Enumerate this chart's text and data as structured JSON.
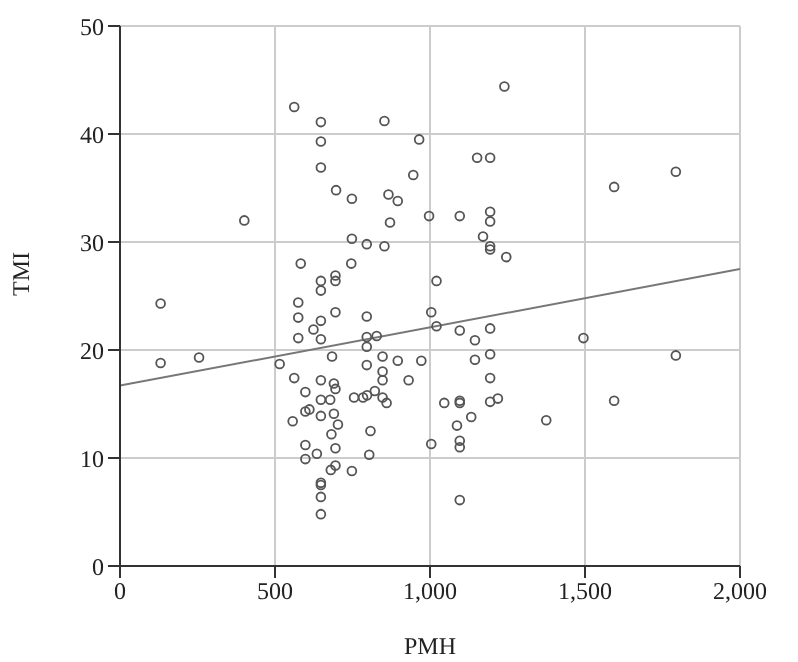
{
  "chart_data": {
    "type": "scatter",
    "xlabel": "PMH",
    "ylabel": "TMI",
    "xlim": [
      0,
      2000
    ],
    "ylim": [
      0,
      50
    ],
    "xticks": [
      0,
      500,
      {
        "value": 1000,
        "label": "1,000"
      },
      {
        "value": 1500,
        "label": "1,500"
      },
      {
        "value": 2000,
        "label": "2,000"
      }
    ],
    "yticks": [
      0,
      10,
      20,
      30,
      40,
      50
    ],
    "grid": true,
    "marker": "circle",
    "series": [
      {
        "color": "#555555",
        "x": [
          562,
          648,
          853,
          965,
          648,
          648,
          946,
          697,
          748,
          866,
          896,
          401,
          871,
          997,
          748,
          796,
          853,
          583,
          746,
          648,
          695,
          695,
          1021,
          648,
          131,
          575,
          575,
          648,
          695,
          624,
          575,
          648,
          796,
          796,
          828,
          796,
          1004,
          1021,
          131,
          255,
          515,
          684,
          796,
          847,
          896,
          972,
          847,
          847,
          931,
          562,
          648,
          690,
          695,
          598,
          648,
          678,
          755,
          784,
          797,
          822,
          847,
          860,
          611,
          598,
          648,
          690,
          557,
          703,
          682,
          808,
          598,
          695,
          635,
          598,
          804,
          695,
          680,
          748,
          648,
          648,
          648,
          648,
          1004,
          1046,
          1096,
          1194,
          1145,
          1194,
          1145,
          1495,
          1793,
          1194,
          1096,
          1096,
          1194,
          1219,
          1133,
          1087,
          1375,
          1594,
          1096,
          1096,
          1096,
          1240,
          1152,
          1194,
          1594,
          1793,
          1096,
          1194,
          1194,
          1171,
          1194,
          1194,
          1246
        ],
        "values": [
          42.5,
          41.1,
          41.2,
          39.5,
          39.3,
          36.9,
          36.2,
          34.8,
          34.0,
          34.4,
          33.8,
          32.0,
          31.8,
          32.4,
          30.3,
          29.8,
          29.6,
          28.0,
          28.0,
          26.4,
          26.9,
          26.4,
          26.4,
          25.5,
          24.3,
          24.4,
          23.0,
          22.7,
          23.5,
          21.9,
          21.1,
          21.0,
          23.1,
          21.2,
          21.3,
          20.3,
          23.5,
          22.2,
          18.8,
          19.3,
          18.7,
          19.4,
          18.6,
          19.4,
          19.0,
          19.0,
          18.0,
          17.2,
          17.2,
          17.4,
          17.2,
          16.9,
          16.4,
          16.1,
          15.4,
          15.4,
          15.6,
          15.6,
          15.8,
          16.2,
          15.6,
          15.1,
          14.5,
          14.3,
          13.9,
          14.1,
          13.4,
          13.1,
          12.2,
          12.5,
          11.2,
          10.9,
          10.4,
          9.9,
          10.3,
          9.3,
          8.9,
          8.8,
          7.7,
          7.5,
          6.4,
          4.8,
          11.3,
          15.1,
          21.8,
          22.0,
          20.9,
          19.6,
          19.1,
          21.1,
          19.5,
          17.4,
          15.1,
          15.3,
          15.2,
          15.5,
          13.8,
          13.0,
          13.5,
          15.3,
          11.6,
          11.0,
          6.1,
          44.4,
          37.8,
          37.8,
          35.1,
          36.5,
          32.4,
          32.8,
          31.9,
          30.5,
          29.3,
          29.6,
          28.6
        ]
      },
      {
        "type": "line",
        "color": "#777777",
        "marker": "none",
        "x": [
          0,
          2000
        ],
        "values": [
          16.7,
          27.5
        ]
      }
    ]
  }
}
